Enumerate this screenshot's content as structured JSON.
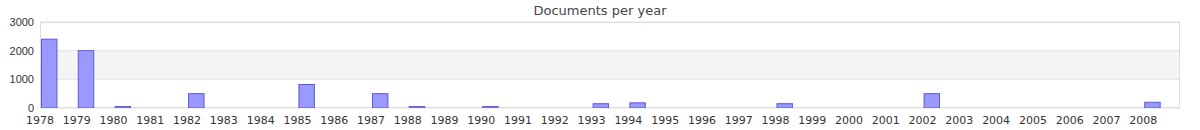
{
  "chart_data": {
    "type": "bar",
    "title": "Documents per year",
    "categories": [
      "1978",
      "1979",
      "1980",
      "1981",
      "1982",
      "1983",
      "1984",
      "1985",
      "1986",
      "1987",
      "1988",
      "1989",
      "1990",
      "1991",
      "1992",
      "1993",
      "1994",
      "1995",
      "1996",
      "1997",
      "1998",
      "1999",
      "2000",
      "2001",
      "2002",
      "2003",
      "2004",
      "2005",
      "2006",
      "2007",
      "2008"
    ],
    "values": [
      2400,
      2000,
      50,
      0,
      500,
      0,
      0,
      820,
      0,
      500,
      50,
      0,
      50,
      0,
      0,
      150,
      180,
      0,
      0,
      0,
      150,
      0,
      0,
      0,
      500,
      0,
      0,
      0,
      0,
      0,
      200
    ],
    "color": "#9999ff",
    "ylim": [
      0,
      3000
    ],
    "yticks": [
      0,
      1000,
      2000,
      3000
    ],
    "grid": true
  }
}
